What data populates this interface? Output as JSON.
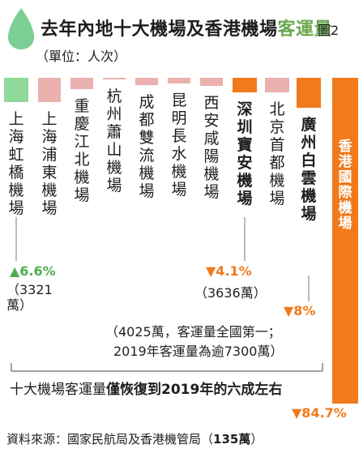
{
  "header": {
    "title_main": "去年內地十大機場及香港機場",
    "title_accent": "客運量",
    "figure_number": "圖2",
    "unit": "（單位：人次）"
  },
  "chart_data": {
    "type": "bar",
    "categories": [
      "上海虹橋機場",
      "上海浦東機場",
      "重慶江北機場",
      "杭州蕭山機場",
      "成都雙流機場",
      "昆明長水機場",
      "西安咸陽機場",
      "深圳寶安機場",
      "北京首都機場",
      "廣州白雲機場",
      "香港國際機場"
    ],
    "change_pct": [
      6.6,
      null,
      null,
      null,
      null,
      null,
      null,
      -4.1,
      null,
      -8,
      -84.7
    ],
    "highlight": [
      false,
      false,
      false,
      false,
      false,
      false,
      false,
      true,
      false,
      true,
      true
    ],
    "values": [
      3321,
      null,
      null,
      null,
      null,
      null,
      null,
      3636,
      null,
      4025,
      null
    ],
    "value_unit": "萬",
    "annotations": {
      "hongqiao_change": "▲6.6%",
      "hongqiao_value": "（3321萬）",
      "shenzhen_change": "▼4.1%",
      "shenzhen_value": "（3636萬）",
      "guangzhou_change": "▼8%",
      "guangzhou_note_1": "（4025萬，客運量全國第一；",
      "guangzhou_note_2": "2019年客運量為逾7300萬）",
      "hongkong_change": "▼84.7%"
    },
    "colors": {
      "up": "#8fd99a",
      "down_light": "#eab1ae",
      "down_orange": "#f07a1c",
      "hk": "#f07a1c"
    }
  },
  "summary": {
    "normal": "十大機場客運量",
    "bold": "僅恢復到2019年的六成左右"
  },
  "source": {
    "normal": "資料來源：國家民航局及香港機管局（",
    "bold": "135萬",
    "end": "）"
  }
}
